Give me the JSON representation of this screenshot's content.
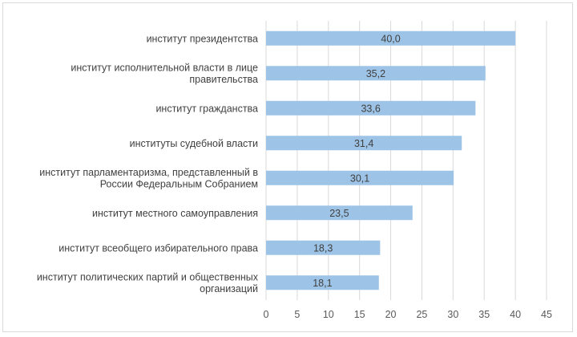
{
  "chart_data": {
    "type": "bar",
    "orientation": "horizontal",
    "categories": [
      [
        "институт президентства"
      ],
      [
        "институт исполнительной власти в лице",
        "правительства"
      ],
      [
        "институт гражданства"
      ],
      [
        "институты судебной власти"
      ],
      [
        "институт парламентаризма, представленный в",
        "России Федеральным Собранием"
      ],
      [
        "институт местного самоуправления"
      ],
      [
        "институт всеобщего избирательного права"
      ],
      [
        "институт политических партий и общественных",
        "организаций"
      ]
    ],
    "values": [
      40.0,
      35.2,
      33.6,
      31.4,
      30.1,
      23.5,
      18.3,
      18.1
    ],
    "value_labels": [
      "40,0",
      "35,2",
      "33,6",
      "31,4",
      "30,1",
      "23,5",
      "18,3",
      "18,1"
    ],
    "xlim": [
      0,
      45
    ],
    "x_ticks": [
      "0",
      "5",
      "10",
      "15",
      "20",
      "25",
      "30",
      "35",
      "40",
      "45"
    ],
    "grid": "vertical",
    "bar_color": "#9dc3e6",
    "grid_color": "#d9d9d9",
    "border_color": "#d9d9d9"
  }
}
